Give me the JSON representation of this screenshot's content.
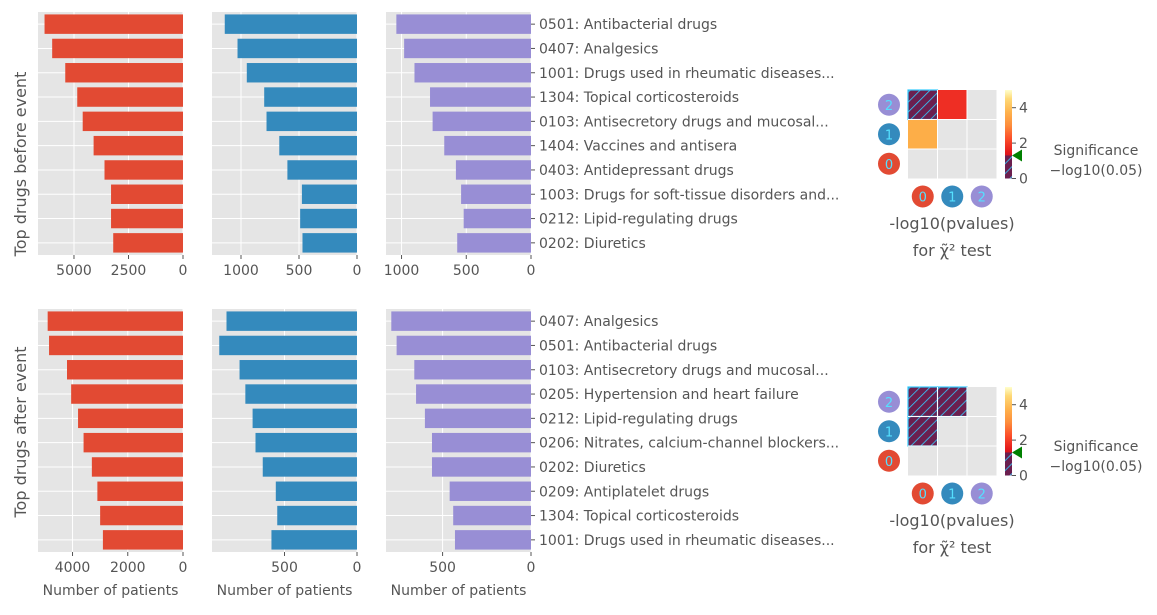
{
  "colors": {
    "panel_bg": "#e5e5e5",
    "grid": "#ffffff",
    "text": "#555555",
    "series": [
      "#e24a33",
      "#348abd",
      "#988ed5"
    ],
    "heat_red": "#ee2e24",
    "heat_orange": "#fdae48",
    "hatch_fill": "#6b1f4f",
    "hatch_line": "#33ccff",
    "marker_green": "#008000"
  },
  "chart_data": [
    {
      "type": "bar",
      "orientation": "horizontal",
      "ylabel": "Top drugs before event",
      "categories": [
        "0501: Antibacterial drugs",
        "0407: Analgesics",
        "1001: Drugs used in rheumatic diseases...",
        "1304: Topical corticosteroids",
        "0103: Antisecretory drugs and mucosal...",
        "1404: Vaccines and antisera",
        "0403: Antidepressant drugs",
        "1003: Drugs for soft-tissue disorders and...",
        "0212: Lipid-regulating drugs",
        "0202: Diuretics"
      ],
      "panels": [
        {
          "values": [
            6350,
            6000,
            5400,
            4850,
            4600,
            4100,
            3600,
            3300,
            3300,
            3200
          ],
          "xlim": [
            6650,
            0
          ],
          "xticks": [
            5000,
            2500,
            0
          ],
          "xtick_labels": [
            "5000",
            "2500",
            "0"
          ],
          "xlabel": ""
        },
        {
          "values": [
            1140,
            1030,
            950,
            800,
            780,
            670,
            600,
            475,
            490,
            470
          ],
          "xlim": [
            1250,
            0
          ],
          "xticks": [
            1000,
            500,
            0
          ],
          "xtick_labels": [
            "1000",
            "500",
            "0"
          ],
          "xlabel": ""
        },
        {
          "values": [
            1040,
            980,
            900,
            780,
            760,
            670,
            580,
            540,
            520,
            570
          ],
          "xlim": [
            1120,
            0
          ],
          "xticks": [
            1000,
            500,
            0
          ],
          "xtick_labels": [
            "1000",
            "500",
            "0"
          ],
          "xlabel": ""
        }
      ],
      "heatmap": {
        "xlabel_top": "-log10(pvalues)",
        "xlabel_bottom": "for χ̃² test",
        "row_labels": [
          "2",
          "1",
          "0"
        ],
        "col_labels": [
          "0",
          "1",
          "2"
        ],
        "cells": [
          [
            "hatch",
            "red",
            "empty"
          ],
          [
            "orange",
            "empty",
            "empty"
          ],
          [
            "empty",
            "empty",
            "empty"
          ]
        ],
        "colorbar": {
          "vmin": 0,
          "vmax": 5,
          "ticks": [
            "0",
            "2",
            "4"
          ],
          "threshold": 1.301
        },
        "significance_title": "Significance",
        "significance_value": "−log10(0.05)"
      }
    },
    {
      "type": "bar",
      "orientation": "horizontal",
      "ylabel": "Top drugs after event",
      "categories": [
        "0407: Analgesics",
        "0501: Antibacterial drugs",
        "0103: Antisecretory drugs and mucosal...",
        "0205: Hypertension and heart failure",
        "0212: Lipid-regulating drugs",
        "0206: Nitrates, calcium-channel blockers...",
        "0202: Diuretics",
        "0209: Antiplatelet drugs",
        "1304: Topical corticosteroids",
        "1001: Drugs used in rheumatic diseases..."
      ],
      "panels": [
        {
          "values": [
            4900,
            4850,
            4200,
            4050,
            3800,
            3600,
            3300,
            3100,
            3000,
            2900
          ],
          "xlim": [
            5250,
            0
          ],
          "xticks": [
            4000,
            2000,
            0
          ],
          "xtick_labels": [
            "4000",
            "2000",
            "0"
          ],
          "xlabel": "Number of patients"
        },
        {
          "values": [
            900,
            950,
            810,
            770,
            720,
            700,
            650,
            560,
            550,
            590
          ],
          "xlim": [
            1000,
            0
          ],
          "xticks": [
            500,
            0
          ],
          "xtick_labels": [
            "500",
            "0"
          ],
          "xlabel": "Number of patients"
        },
        {
          "values": [
            790,
            760,
            660,
            650,
            600,
            560,
            560,
            460,
            440,
            430
          ],
          "xlim": [
            820,
            0
          ],
          "xticks": [
            500,
            0
          ],
          "xtick_labels": [
            "500",
            "0"
          ],
          "xlabel": "Number of patients"
        }
      ],
      "heatmap": {
        "xlabel_top": "-log10(pvalues)",
        "xlabel_bottom": "for χ̃² test",
        "row_labels": [
          "2",
          "1",
          "0"
        ],
        "col_labels": [
          "0",
          "1",
          "2"
        ],
        "cells": [
          [
            "hatch",
            "hatch",
            "empty"
          ],
          [
            "hatch",
            "empty",
            "empty"
          ],
          [
            "empty",
            "empty",
            "empty"
          ]
        ],
        "colorbar": {
          "vmin": 0,
          "vmax": 5,
          "ticks": [
            "0",
            "2",
            "4"
          ],
          "threshold": 1.301
        },
        "significance_title": "Significance",
        "significance_value": "−log10(0.05)"
      }
    }
  ]
}
